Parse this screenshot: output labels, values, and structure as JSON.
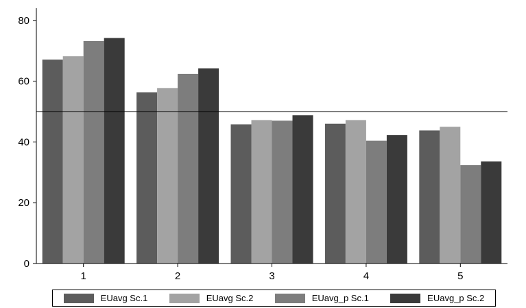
{
  "chart_data": {
    "type": "bar",
    "categories": [
      "1",
      "2",
      "3",
      "4",
      "5"
    ],
    "series": [
      {
        "name": "EUavg Sc.1",
        "color": "#5c5c5c",
        "values": [
          67.1,
          56.3,
          45.8,
          46.0,
          43.8
        ]
      },
      {
        "name": "EUavg Sc.2",
        "color": "#a3a3a3",
        "values": [
          68.2,
          57.7,
          47.2,
          47.2,
          45.0
        ]
      },
      {
        "name": "EUavg_p Sc.1",
        "color": "#7d7d7d",
        "values": [
          73.2,
          62.4,
          47.0,
          40.4,
          32.4
        ]
      },
      {
        "name": "EUavg_p Sc.2",
        "color": "#3a3a3a",
        "values": [
          74.2,
          64.2,
          48.8,
          42.3,
          33.6
        ]
      }
    ],
    "ylim": [
      0,
      84
    ],
    "yticks": [
      "0",
      "20",
      "40",
      "60",
      "80"
    ],
    "reference_line": 50,
    "legend_position": "bottom",
    "grid": false
  }
}
